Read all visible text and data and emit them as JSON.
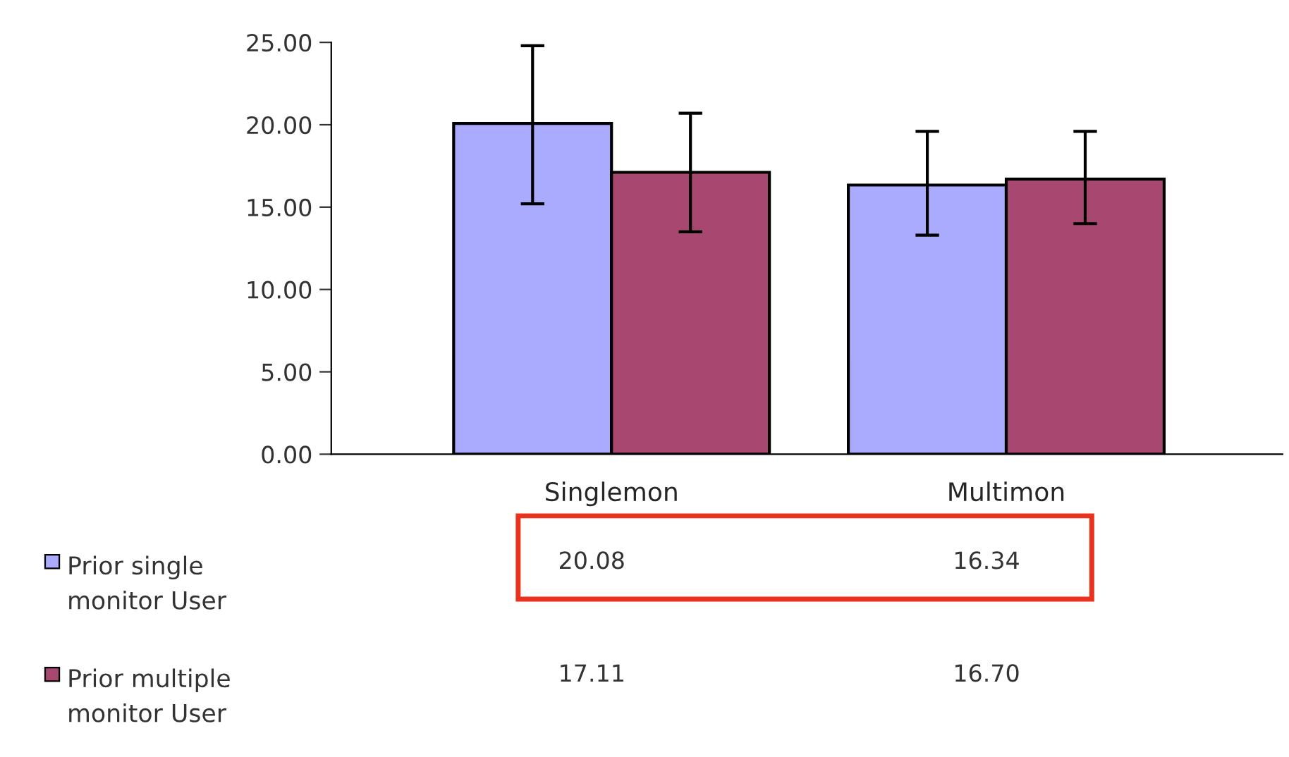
{
  "chart_data": {
    "type": "bar",
    "categories": [
      "Singlemon",
      "Multimon"
    ],
    "series": [
      {
        "name": "Prior single\nmonitor User",
        "color": "#aaaaff",
        "values": [
          20.08,
          16.34
        ],
        "value_labels": [
          "20.08",
          "16.34"
        ],
        "errors": [
          [
            15.2,
            24.8
          ],
          [
            13.3,
            19.6
          ]
        ]
      },
      {
        "name": "Prior multiple\nmonitor User",
        "color": "#a8476f",
        "values": [
          17.11,
          16.7
        ],
        "value_labels": [
          "17.11",
          "16.70"
        ],
        "errors": [
          [
            13.5,
            20.7
          ],
          [
            14.0,
            19.6
          ]
        ]
      }
    ],
    "ylim": [
      0,
      25
    ],
    "yticks": [
      {
        "value": 0,
        "label": "0.00"
      },
      {
        "value": 5,
        "label": "5.00"
      },
      {
        "value": 10,
        "label": "10.00"
      },
      {
        "value": 15,
        "label": "15.00"
      },
      {
        "value": 20,
        "label": "20.00"
      },
      {
        "value": 25,
        "label": "25.00"
      }
    ],
    "legend": "bottom left",
    "grid": false
  }
}
